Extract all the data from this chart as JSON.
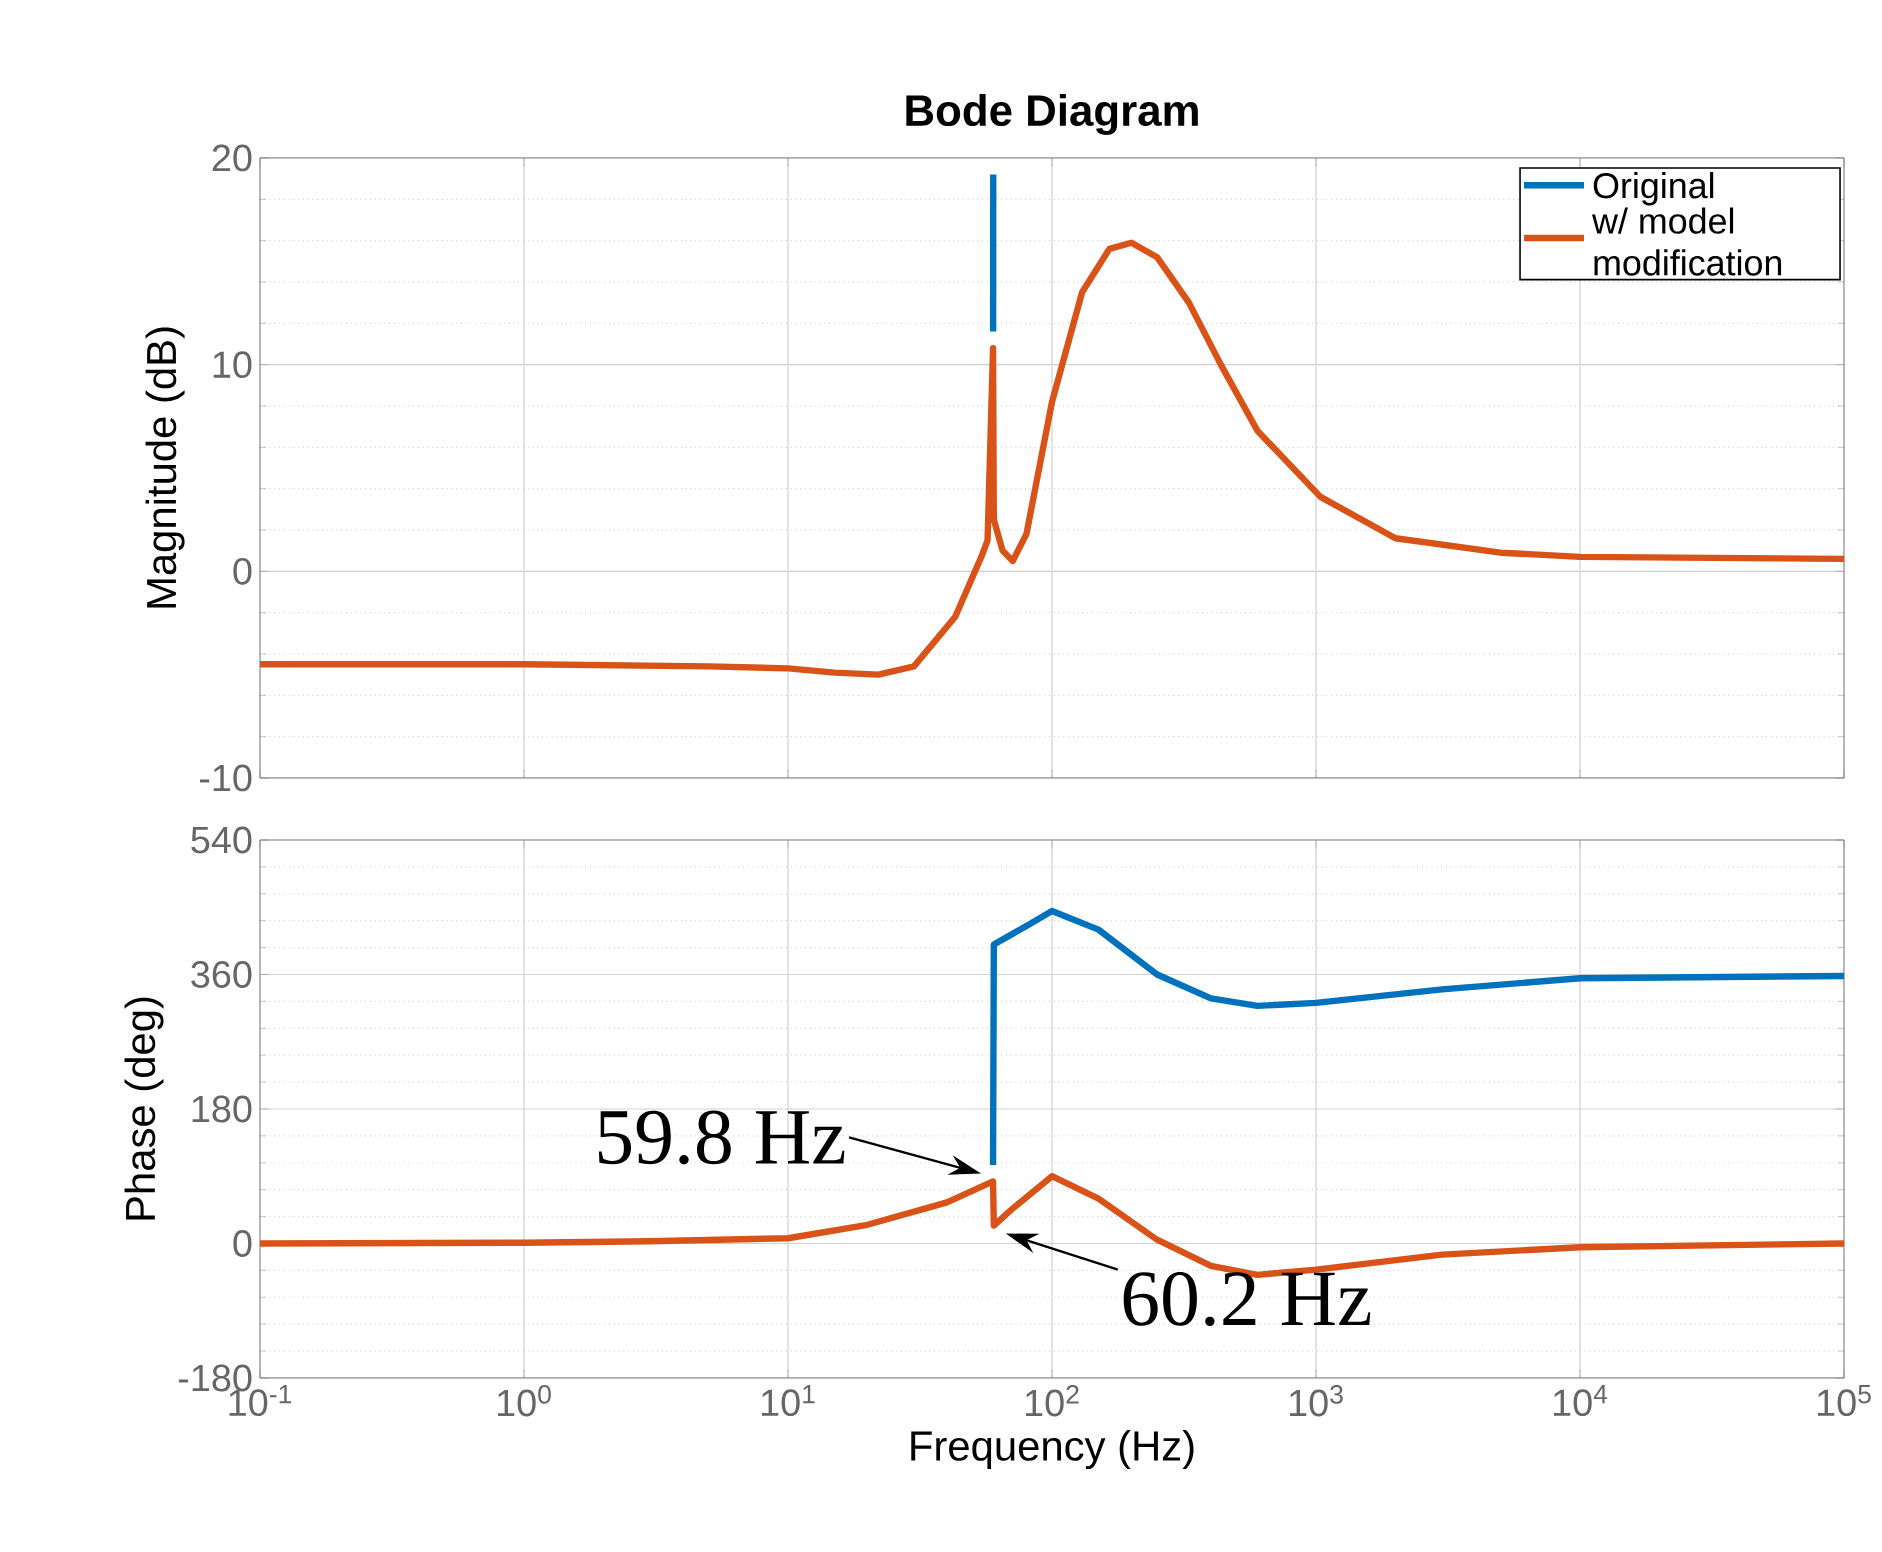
{
  "chart_data": [
    {
      "type": "line",
      "title": "Bode Diagram",
      "ylabel": "Magnitude (dB)",
      "log": "x",
      "grid": true,
      "legend": "top right",
      "tick_labels": "y",
      "xlim": [
        0.1,
        100000
      ],
      "ylim": [
        -10,
        20
      ],
      "xticks": [
        {
          "value": 0.1,
          "label": null
        },
        {
          "value": 1,
          "label": null
        },
        {
          "value": 10,
          "label": null
        },
        {
          "value": 100,
          "label": null
        },
        {
          "value": 1000,
          "label": null
        },
        {
          "value": 10000,
          "label": null
        },
        {
          "value": 100000,
          "label": null
        }
      ],
      "yticks": [
        -10,
        0,
        10,
        20
      ],
      "series": [
        {
          "name": "Original",
          "color": "#0072bd",
          "x": [
            59.85,
            59.9
          ],
          "values": [
            11.6,
            19.2
          ]
        },
        {
          "name": "w/ model modification",
          "color": "#d95319",
          "x": [
            0.1,
            1,
            5,
            10,
            15,
            22,
            30,
            43,
            54,
            57,
            59.8,
            60.2,
            65,
            71,
            80,
            100,
            130,
            165,
            200,
            250,
            330,
            436,
            600,
            1040,
            2000,
            5000,
            10000,
            100000
          ],
          "values": [
            -4.5,
            -4.5,
            -4.6,
            -4.7,
            -4.9,
            -5.0,
            -4.6,
            -2.2,
            0.7,
            1.5,
            10.8,
            2.5,
            1.0,
            0.5,
            1.8,
            8.2,
            13.5,
            15.6,
            15.9,
            15.2,
            13.0,
            10.0,
            6.8,
            3.6,
            1.6,
            0.9,
            0.7,
            0.6
          ]
        }
      ]
    },
    {
      "type": "line",
      "xlabel": "Frequency  (Hz)",
      "ylabel": "Phase (deg)",
      "log": "x",
      "grid": true,
      "xlim": [
        0.1,
        100000
      ],
      "ylim": [
        -180,
        540
      ],
      "xticks": [
        {
          "value": 0.1,
          "label": "10$^{-1}$"
        },
        {
          "value": 1,
          "label": "10$^{0}$"
        },
        {
          "value": 10,
          "label": "10$^{1}$"
        },
        {
          "value": 100,
          "label": "10$^{2}$"
        },
        {
          "value": 1000,
          "label": "10$^{3}$"
        },
        {
          "value": 10000,
          "label": "10$^{4}$"
        },
        {
          "value": 100000,
          "label": "10$^{5}$"
        }
      ],
      "yticks": [
        -180,
        0,
        180,
        360,
        540
      ],
      "annotations": [
        {
          "text": "59.8 Hz",
          "x": 59.8,
          "y": 83
        },
        {
          "text": "60.2 Hz",
          "x": 60.2,
          "y": 24
        }
      ],
      "series": [
        {
          "color": "#0072bd",
          "x": [
            59.8,
            60.2,
            80,
            100,
            150,
            250,
            400,
            600,
            1000,
            3000,
            10000,
            100000
          ],
          "values": [
            105,
            400,
            425,
            445,
            420,
            360,
            328,
            318,
            322,
            340,
            355,
            358
          ]
        },
        {
          "color": "#d95319",
          "x": [
            0.1,
            1,
            3,
            10,
            20,
            40,
            59.8,
            60.2,
            70,
            100,
            150,
            250,
            400,
            600,
            1000,
            3000,
            10000,
            100000
          ],
          "values": [
            0,
            1,
            3,
            7,
            25,
            55,
            83,
            24,
            45,
            90,
            60,
            5,
            -30,
            -42,
            -35,
            -15,
            -5,
            0
          ]
        }
      ]
    }
  ]
}
